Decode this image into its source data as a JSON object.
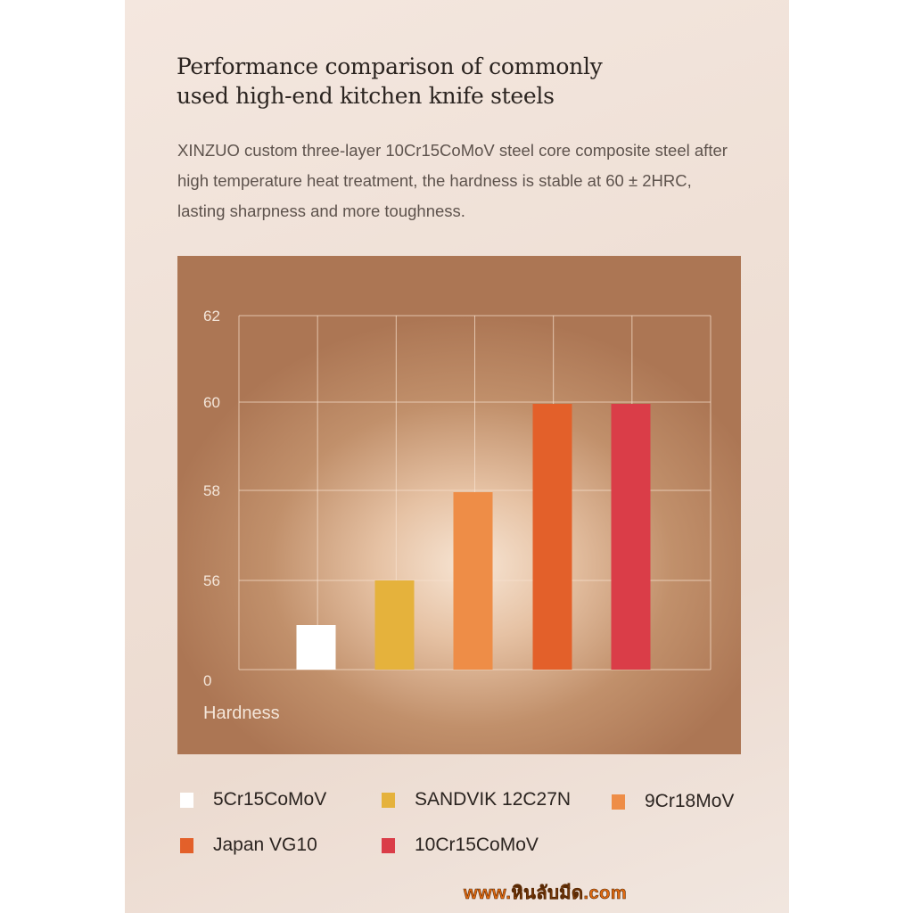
{
  "header": {
    "title_line1": "Performance comparison of commonly",
    "title_line2": "used high-end kitchen knife steels",
    "desc_line1": "XINZUO custom three-layer 10Cr15CoMoV steel core composite steel after",
    "desc_line2": "high temperature heat treatment, the hardness is stable at 60 ± 2HRC,",
    "desc_line3": "lasting sharpness and more toughness."
  },
  "chart_data": {
    "type": "bar",
    "categories": [
      "5Cr15CoMoV",
      "SANDVIK 12C27N",
      "9Cr18MoV",
      "Japan VG10",
      "10Cr15CoMoV"
    ],
    "values": [
      55,
      56,
      58,
      60,
      60
    ],
    "colors": [
      "#ffffff",
      "#e5b23c",
      "#ee8d47",
      "#e3602a",
      "#da3d48"
    ],
    "ytick_labels": [
      "0",
      "56",
      "58",
      "60",
      "62"
    ],
    "ylabel": "Hardness",
    "xlabel": "",
    "title": "",
    "y_axis_note": "broken axis: 0 at bottom, then 56 to 62",
    "grid": true,
    "legend_position": "bottom"
  },
  "legend": [
    {
      "label": "5Cr15CoMoV",
      "color": "#ffffff"
    },
    {
      "label": "SANDVIK 12C27N",
      "color": "#e5b23c"
    },
    {
      "label": "9Cr18MoV",
      "color": "#ee8d47"
    },
    {
      "label": "Japan VG10",
      "color": "#e3602a"
    },
    {
      "label": "10Cr15CoMoV",
      "color": "#da3d48"
    }
  ],
  "watermark": "www.หินลับมีด.com"
}
